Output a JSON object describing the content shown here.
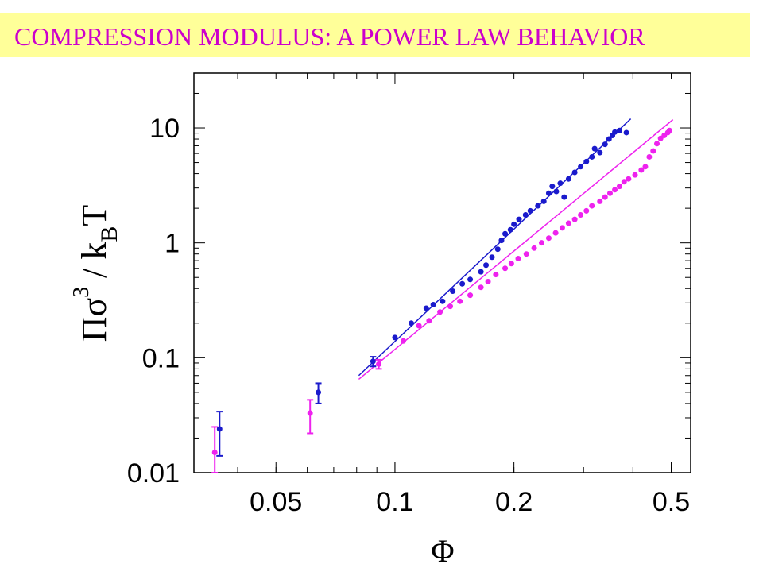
{
  "title": "COMPRESSION MODULUS: A POWER LAW BEHAVIOR",
  "colors": {
    "title_bg": "#ffff99",
    "title_text": "#cc00cc",
    "blue": "#1a1acc",
    "magenta": "#ee22ee"
  },
  "chart_data": {
    "type": "scatter",
    "title": "COMPRESSION MODULUS: A POWER LAW BEHAVIOR",
    "xlabel": "Φ",
    "ylabel_parts": {
      "main": "Πσ",
      "sup": "3",
      "slash": " / k",
      "sub": "B",
      "tail": "T"
    },
    "xscale": "log",
    "yscale": "log",
    "xlim": [
      0.031,
      0.56
    ],
    "ylim": [
      0.01,
      30
    ],
    "x_ticks": [
      {
        "value": 0.05,
        "label": "0.05"
      },
      {
        "value": 0.1,
        "label": "0.1"
      },
      {
        "value": 0.2,
        "label": "0.2"
      },
      {
        "value": 0.5,
        "label": "0.5"
      }
    ],
    "y_ticks": [
      {
        "value": 0.01,
        "label": "0.01"
      },
      {
        "value": 0.1,
        "label": "0.1"
      },
      {
        "value": 1,
        "label": "1"
      },
      {
        "value": 10,
        "label": "10"
      }
    ],
    "grid": false,
    "series": [
      {
        "color": "#1a1acc",
        "points": [
          [
            0.036,
            0.024
          ],
          [
            0.064,
            0.05
          ],
          [
            0.088,
            0.093
          ],
          [
            0.1,
            0.15
          ],
          [
            0.11,
            0.2
          ],
          [
            0.12,
            0.27
          ],
          [
            0.125,
            0.29
          ],
          [
            0.132,
            0.31
          ],
          [
            0.14,
            0.38
          ],
          [
            0.148,
            0.44
          ],
          [
            0.155,
            0.48
          ],
          [
            0.165,
            0.56
          ],
          [
            0.17,
            0.64
          ],
          [
            0.176,
            0.75
          ],
          [
            0.182,
            0.88
          ],
          [
            0.186,
            1.05
          ],
          [
            0.19,
            1.2
          ],
          [
            0.196,
            1.3
          ],
          [
            0.2,
            1.45
          ],
          [
            0.206,
            1.6
          ],
          [
            0.214,
            1.75
          ],
          [
            0.22,
            1.9
          ],
          [
            0.23,
            2.1
          ],
          [
            0.238,
            2.3
          ],
          [
            0.245,
            2.7
          ],
          [
            0.25,
            3.1
          ],
          [
            0.256,
            2.8
          ],
          [
            0.262,
            3.3
          ],
          [
            0.268,
            2.5
          ],
          [
            0.275,
            3.6
          ],
          [
            0.285,
            4.1
          ],
          [
            0.295,
            4.6
          ],
          [
            0.305,
            5.1
          ],
          [
            0.315,
            5.6
          ],
          [
            0.32,
            6.6
          ],
          [
            0.33,
            6.1
          ],
          [
            0.34,
            7.2
          ],
          [
            0.348,
            8.0
          ],
          [
            0.355,
            8.6
          ],
          [
            0.36,
            9.2
          ],
          [
            0.37,
            9.5
          ],
          [
            0.385,
            9.1
          ]
        ],
        "error_bars": [
          [
            0.036,
            0.014,
            0.034
          ],
          [
            0.064,
            0.04,
            0.06
          ],
          [
            0.088,
            0.084,
            0.102
          ]
        ]
      },
      {
        "color": "#ee22ee",
        "points": [
          [
            0.035,
            0.015
          ],
          [
            0.061,
            0.033
          ],
          [
            0.091,
            0.088
          ],
          [
            0.105,
            0.14
          ],
          [
            0.115,
            0.19
          ],
          [
            0.122,
            0.21
          ],
          [
            0.13,
            0.25
          ],
          [
            0.138,
            0.28
          ],
          [
            0.146,
            0.31
          ],
          [
            0.155,
            0.35
          ],
          [
            0.165,
            0.41
          ],
          [
            0.172,
            0.46
          ],
          [
            0.18,
            0.53
          ],
          [
            0.19,
            0.6
          ],
          [
            0.197,
            0.66
          ],
          [
            0.205,
            0.73
          ],
          [
            0.215,
            0.8
          ],
          [
            0.225,
            0.9
          ],
          [
            0.235,
            1.0
          ],
          [
            0.245,
            1.1
          ],
          [
            0.255,
            1.22
          ],
          [
            0.265,
            1.35
          ],
          [
            0.275,
            1.48
          ],
          [
            0.285,
            1.6
          ],
          [
            0.295,
            1.75
          ],
          [
            0.305,
            1.9
          ],
          [
            0.315,
            2.1
          ],
          [
            0.33,
            2.3
          ],
          [
            0.34,
            2.5
          ],
          [
            0.35,
            2.7
          ],
          [
            0.36,
            2.9
          ],
          [
            0.37,
            3.1
          ],
          [
            0.38,
            3.4
          ],
          [
            0.39,
            3.6
          ],
          [
            0.405,
            3.9
          ],
          [
            0.42,
            4.3
          ],
          [
            0.43,
            4.6
          ],
          [
            0.44,
            5.6
          ],
          [
            0.45,
            6.3
          ],
          [
            0.46,
            7.3
          ],
          [
            0.47,
            8.1
          ],
          [
            0.48,
            8.6
          ],
          [
            0.49,
            9.1
          ],
          [
            0.495,
            9.5
          ]
        ],
        "error_bars": [
          [
            0.035,
            0.01,
            0.025
          ],
          [
            0.061,
            0.022,
            0.043
          ],
          [
            0.091,
            0.08,
            0.096
          ]
        ]
      }
    ],
    "fit_lines": [
      {
        "color": "#1a1acc",
        "x": [
          0.081,
          0.395
        ],
        "y": [
          0.07,
          12
        ]
      },
      {
        "color": "#ee22ee",
        "x": [
          0.081,
          0.505
        ],
        "y": [
          0.065,
          11.8
        ]
      }
    ]
  }
}
